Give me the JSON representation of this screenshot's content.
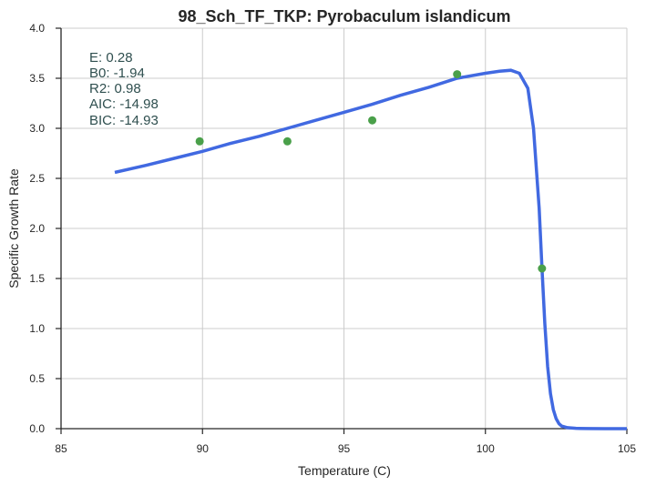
{
  "chart_data": {
    "type": "scatter",
    "title": "98_Sch_TF_TKP: Pyrobaculum islandicum",
    "xlabel": "Temperature (C)",
    "ylabel": "Specific Growth Rate",
    "xlim": [
      85,
      105
    ],
    "ylim": [
      0.0,
      4.0
    ],
    "xticks": [
      85,
      90,
      95,
      100,
      105
    ],
    "xtick_labels": [
      "85",
      "90",
      "95",
      "100",
      "105"
    ],
    "yticks": [
      0.0,
      0.5,
      1.0,
      1.5,
      2.0,
      2.5,
      3.0,
      3.5,
      4.0
    ],
    "ytick_labels": [
      "0.0",
      "0.5",
      "1.0",
      "1.5",
      "2.0",
      "2.5",
      "3.0",
      "3.5",
      "4.0"
    ],
    "grid": true,
    "points": {
      "color": "#4aa04a",
      "x": [
        89.9,
        93.0,
        96.0,
        99.0,
        102.0
      ],
      "y": [
        2.87,
        2.87,
        3.08,
        3.54,
        1.6
      ]
    },
    "fit_line": {
      "color": "#4169e1",
      "x": [
        86.9,
        88.0,
        89.0,
        90.0,
        91.0,
        92.0,
        93.0,
        94.0,
        95.0,
        96.0,
        97.0,
        98.0,
        99.0,
        100.0,
        100.5,
        100.9,
        101.2,
        101.5,
        101.7,
        101.9,
        102.0,
        102.1,
        102.2,
        102.3,
        102.4,
        102.5,
        102.6,
        102.7,
        102.9,
        103.2,
        103.6,
        104.2,
        105.0
      ],
      "y": [
        2.56,
        2.63,
        2.7,
        2.77,
        2.85,
        2.92,
        3.0,
        3.08,
        3.16,
        3.24,
        3.33,
        3.41,
        3.5,
        3.55,
        3.57,
        3.58,
        3.55,
        3.4,
        3.0,
        2.2,
        1.6,
        1.05,
        0.62,
        0.35,
        0.19,
        0.1,
        0.05,
        0.025,
        0.01,
        0.003,
        0.001,
        0.0,
        0.0
      ]
    },
    "annotations": [
      "E:  0.28",
      "B0:  -1.94",
      "R2:  0.98",
      "AIC: -14.98",
      "BIC: -14.93"
    ]
  }
}
